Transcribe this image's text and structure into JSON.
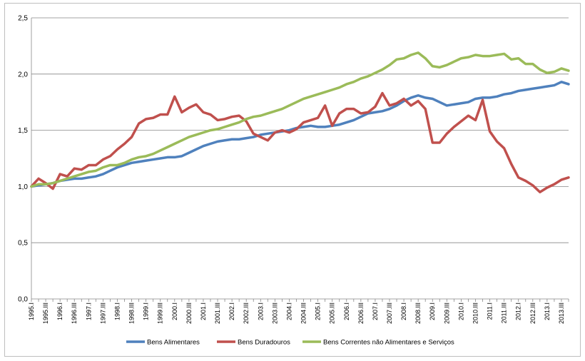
{
  "chart_data": {
    "type": "line",
    "title": "",
    "xlabel": "",
    "ylabel": "",
    "ylim": [
      0,
      2.5
    ],
    "yticks": [
      "0,0",
      "0,5",
      "1,0",
      "1,5",
      "2,0",
      "2,5"
    ],
    "ytick_values": [
      0,
      0.5,
      1.0,
      1.5,
      2.0,
      2.5
    ],
    "grid": true,
    "legend_position": "bottom",
    "x": [
      "1995.I",
      "1995.II",
      "1995.III",
      "1995.IV",
      "1996.I",
      "1996.II",
      "1996.III",
      "1996.IV",
      "1997.I",
      "1997.II",
      "1997.III",
      "1997.IV",
      "1998.I",
      "1998.II",
      "1998.III",
      "1998.IV",
      "1999.I",
      "1999.II",
      "1999.III",
      "1999.IV",
      "2000.I",
      "2000.II",
      "2000.III",
      "2000.IV",
      "2001.I",
      "2001.II",
      "2001.III",
      "2001.IV",
      "2002.I",
      "2002.II",
      "2002.III",
      "2002.IV",
      "2003.I",
      "2003.II",
      "2003.III",
      "2003.IV",
      "2004.I",
      "2004.II",
      "2004.III",
      "2004.IV",
      "2005.I",
      "2005.II",
      "2005.III",
      "2005.IV",
      "2006.I",
      "2006.II",
      "2006.III",
      "2006.IV",
      "2007.I",
      "2007.II",
      "2007.III",
      "2007.IV",
      "2008.I",
      "2008.II",
      "2008.III",
      "2008.IV",
      "2009.I",
      "2009.II",
      "2009.III",
      "2009.IV",
      "2010.I",
      "2010.II",
      "2010.III",
      "2010.IV",
      "2011.I",
      "2011.II",
      "2011.III",
      "2011.IV",
      "2012.I",
      "2012.II",
      "2012.III",
      "2012.IV",
      "2013.I",
      "2013.II",
      "2013.III",
      "2013.IV"
    ],
    "x_tick_labels": [
      "1995.I",
      "1995.III",
      "1996.I",
      "1996.III",
      "1997.I",
      "1997.III",
      "1998.I",
      "1998.III",
      "1999.I",
      "1999.III",
      "2000.I",
      "2000.III",
      "2001.I",
      "2001.III",
      "2002.I",
      "2002.III",
      "2003.I",
      "2003.III",
      "2004.I",
      "2004.III",
      "2005.I",
      "2005.III",
      "2006.I",
      "2006.III",
      "2007.I",
      "2007.III",
      "2008.I",
      "2008.III",
      "2009.I",
      "2009.III",
      "2010.I",
      "2010.III",
      "2011.I",
      "2011.III",
      "2012.I",
      "2012.III",
      "2013.I",
      "2013.III"
    ],
    "series": [
      {
        "name": "Bens Alimentares",
        "color": "#4f81bd",
        "values": [
          1.0,
          1.01,
          1.02,
          1.03,
          1.05,
          1.06,
          1.07,
          1.07,
          1.08,
          1.09,
          1.11,
          1.14,
          1.17,
          1.19,
          1.21,
          1.22,
          1.23,
          1.24,
          1.25,
          1.26,
          1.26,
          1.27,
          1.3,
          1.33,
          1.36,
          1.38,
          1.4,
          1.41,
          1.42,
          1.42,
          1.43,
          1.44,
          1.46,
          1.47,
          1.48,
          1.49,
          1.5,
          1.52,
          1.53,
          1.54,
          1.53,
          1.53,
          1.54,
          1.55,
          1.57,
          1.59,
          1.62,
          1.65,
          1.66,
          1.67,
          1.69,
          1.72,
          1.76,
          1.79,
          1.81,
          1.79,
          1.78,
          1.75,
          1.72,
          1.73,
          1.74,
          1.75,
          1.78,
          1.79,
          1.79,
          1.8,
          1.82,
          1.83,
          1.85,
          1.86,
          1.87,
          1.88,
          1.89,
          1.9,
          1.93,
          1.91
        ]
      },
      {
        "name": "Bens Duradouros",
        "color": "#c0504d",
        "values": [
          1.0,
          1.07,
          1.03,
          0.98,
          1.11,
          1.09,
          1.16,
          1.15,
          1.19,
          1.19,
          1.24,
          1.27,
          1.33,
          1.38,
          1.44,
          1.56,
          1.6,
          1.61,
          1.64,
          1.64,
          1.8,
          1.66,
          1.7,
          1.73,
          1.66,
          1.64,
          1.59,
          1.6,
          1.62,
          1.63,
          1.58,
          1.47,
          1.44,
          1.41,
          1.48,
          1.5,
          1.48,
          1.51,
          1.57,
          1.59,
          1.61,
          1.72,
          1.54,
          1.65,
          1.69,
          1.69,
          1.65,
          1.66,
          1.71,
          1.83,
          1.72,
          1.74,
          1.78,
          1.72,
          1.76,
          1.69,
          1.39,
          1.39,
          1.47,
          1.53,
          1.58,
          1.63,
          1.59,
          1.77,
          1.49,
          1.4,
          1.34,
          1.2,
          1.08,
          1.05,
          1.01,
          0.95,
          0.99,
          1.02,
          1.06,
          1.08
        ]
      },
      {
        "name": "Bens Correntes não Alimentares e Serviços",
        "color": "#9bbb59",
        "values": [
          1.0,
          1.02,
          1.02,
          1.03,
          1.05,
          1.07,
          1.09,
          1.11,
          1.13,
          1.14,
          1.17,
          1.19,
          1.19,
          1.21,
          1.24,
          1.26,
          1.27,
          1.29,
          1.32,
          1.35,
          1.38,
          1.41,
          1.44,
          1.46,
          1.48,
          1.5,
          1.51,
          1.53,
          1.55,
          1.57,
          1.6,
          1.62,
          1.63,
          1.65,
          1.67,
          1.69,
          1.72,
          1.75,
          1.78,
          1.8,
          1.82,
          1.84,
          1.86,
          1.88,
          1.91,
          1.93,
          1.96,
          1.98,
          2.01,
          2.04,
          2.08,
          2.13,
          2.14,
          2.17,
          2.19,
          2.14,
          2.07,
          2.06,
          2.08,
          2.11,
          2.14,
          2.15,
          2.17,
          2.16,
          2.16,
          2.17,
          2.18,
          2.13,
          2.14,
          2.09,
          2.09,
          2.04,
          2.01,
          2.02,
          2.05,
          2.03
        ]
      }
    ]
  }
}
